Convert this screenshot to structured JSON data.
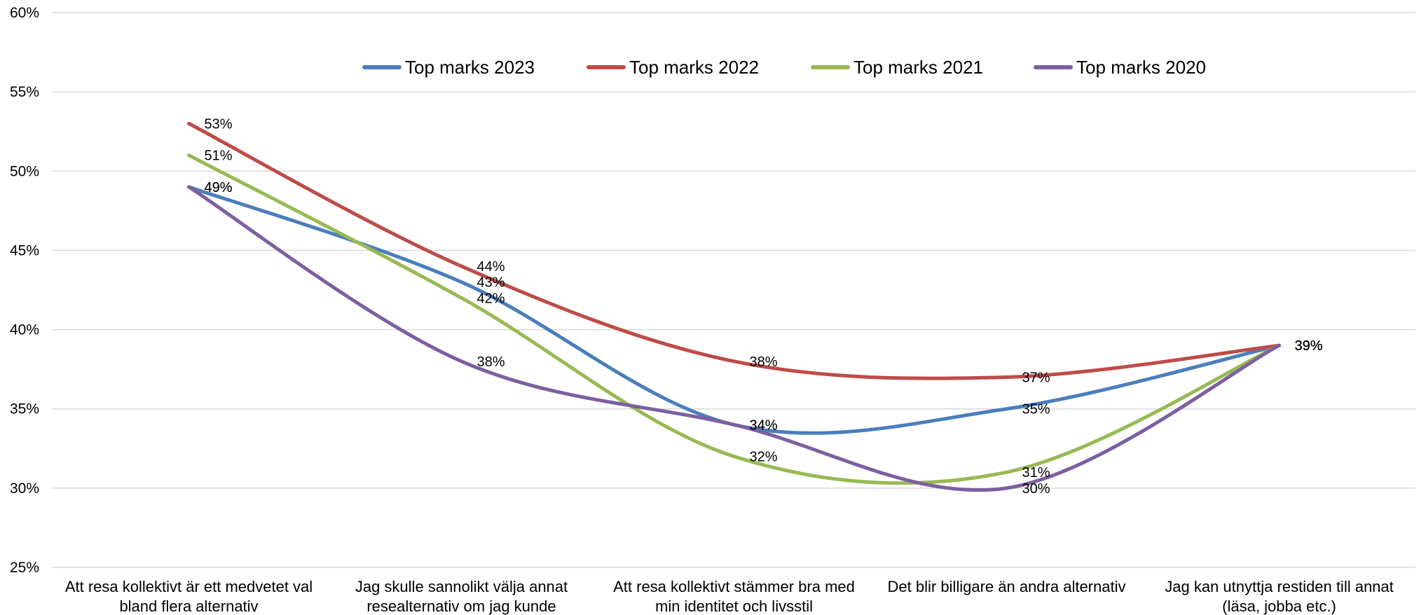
{
  "chart_data": {
    "type": "line",
    "title": "",
    "xlabel": "",
    "ylabel": "",
    "ylim": [
      25,
      60
    ],
    "yticks": [
      "25%",
      "30%",
      "35%",
      "40%",
      "45%",
      "50%",
      "55%",
      "60%"
    ],
    "y_unit": "%",
    "grid": true,
    "smooth": true,
    "legend_position": "top",
    "categories": [
      [
        "Att resa kollektivt är ett medvetet val",
        "bland flera alternativ"
      ],
      [
        "Jag skulle sannolikt välja annat",
        "resealternativ om jag kunde"
      ],
      [
        "Att resa kollektivt stämmer bra med",
        "min identitet och livsstil"
      ],
      [
        "Det blir billigare än andra alternativ"
      ],
      [
        "Jag kan utnyttja restiden till annat",
        "(läsa, jobba etc.)"
      ]
    ],
    "series": [
      {
        "name": "Top marks 2023",
        "color": "#4a7ebb",
        "values": [
          49,
          43,
          34,
          35,
          39
        ],
        "labels": [
          "49%",
          "43%",
          "34%",
          "35%",
          "39%"
        ]
      },
      {
        "name": "Top marks 2022",
        "color": "#be4b48",
        "values": [
          53,
          44,
          38,
          37,
          39
        ],
        "labels": [
          "53%",
          "44%",
          "38%",
          "37%",
          "39%"
        ]
      },
      {
        "name": "Top marks 2021",
        "color": "#98b954",
        "values": [
          51,
          42,
          32,
          31,
          39
        ],
        "labels": [
          "51%",
          "42%",
          "32%",
          "31%",
          "39%"
        ]
      },
      {
        "name": "Top marks 2020",
        "color": "#7d5fa0",
        "values": [
          49,
          38,
          34,
          30,
          39
        ],
        "labels": [
          "49%",
          "38%",
          "34%",
          "30%",
          "39%"
        ]
      }
    ]
  }
}
